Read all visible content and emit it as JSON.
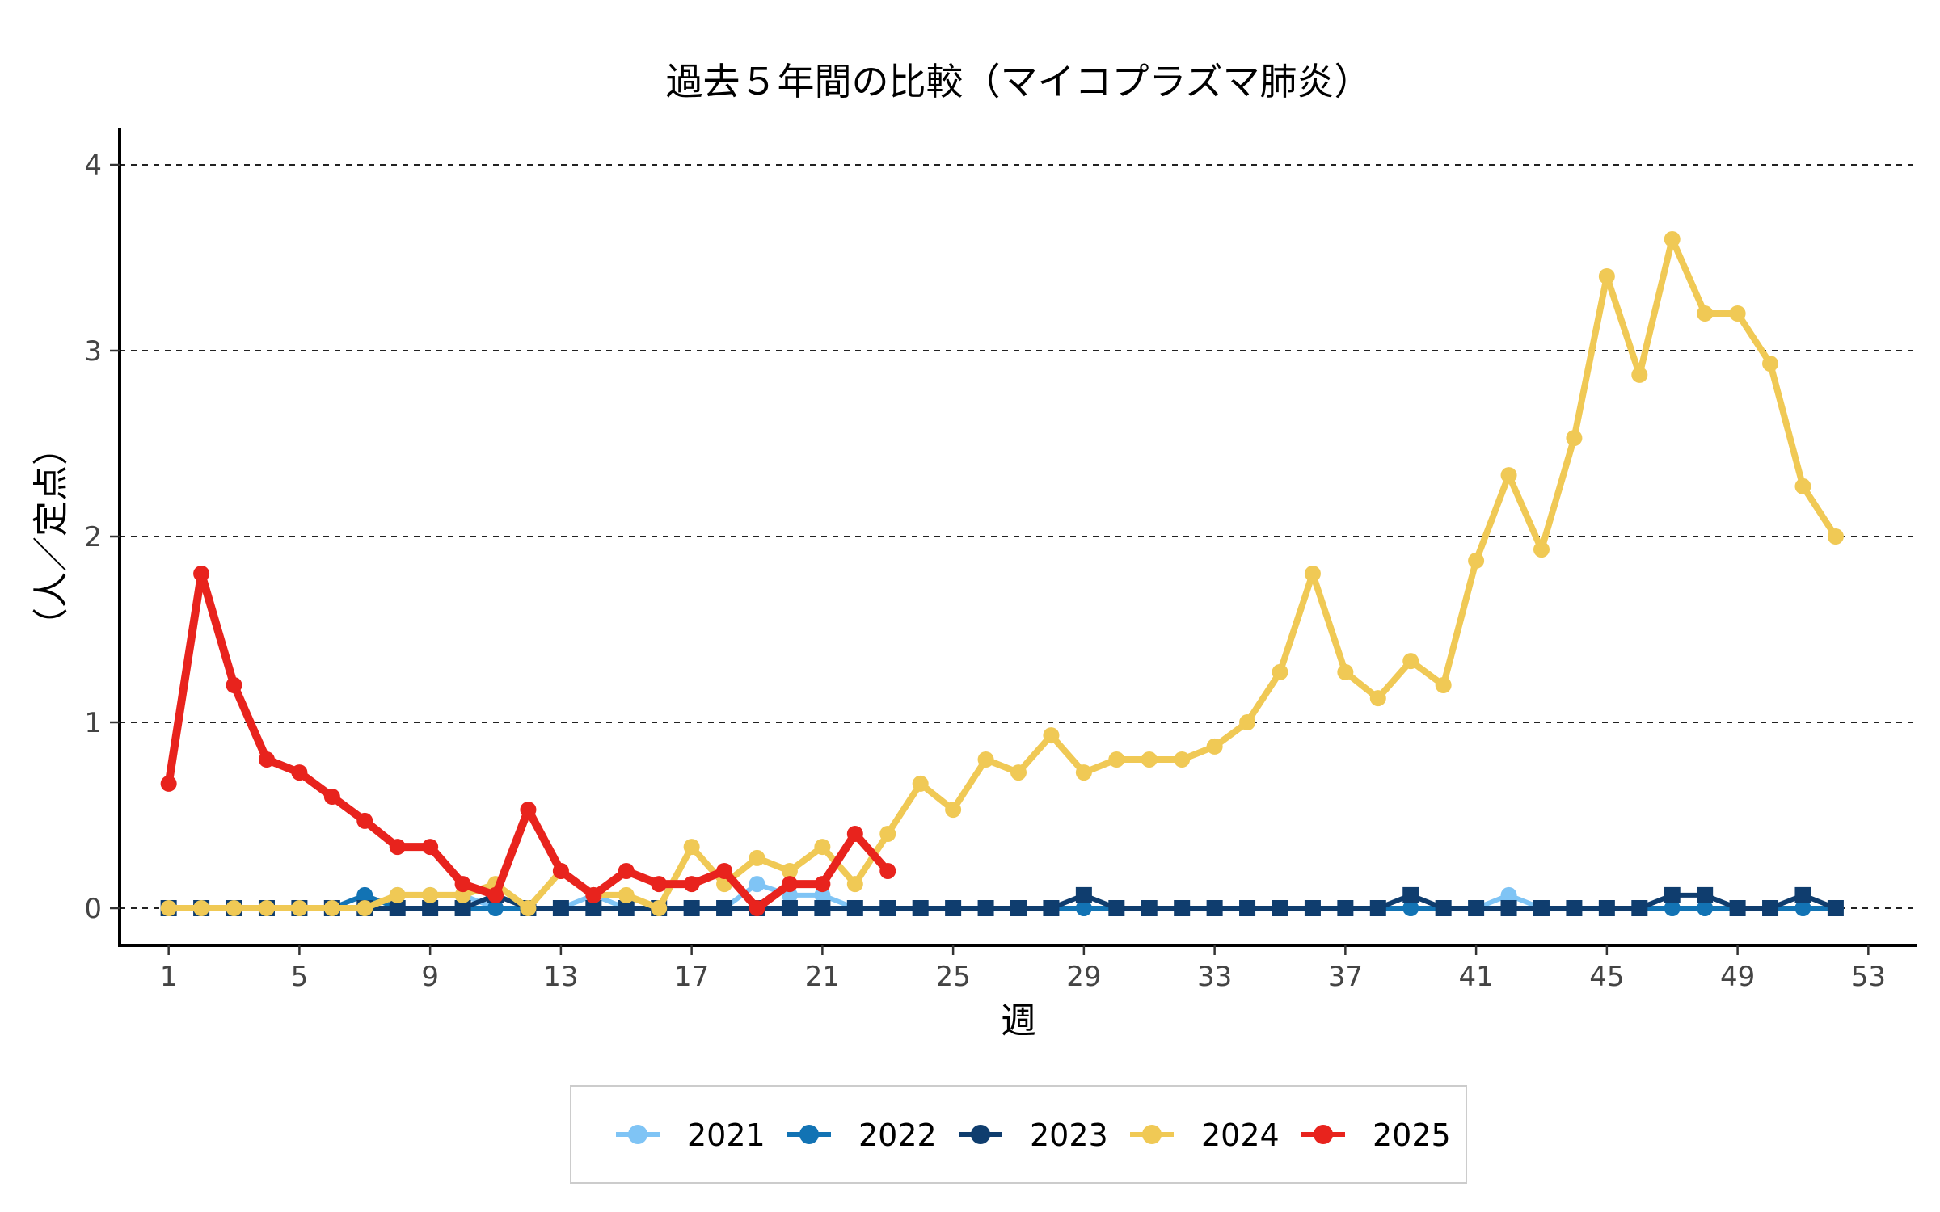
{
  "chart_data": {
    "type": "line",
    "title": "過去５年間の比較（マイコプラズマ肺炎）",
    "xlabel": "週",
    "ylabel": "（人／定点）",
    "xlim": [
      -0.5,
      54.5
    ],
    "ylim": [
      -0.2,
      4.2
    ],
    "x_ticks": [
      1,
      5,
      9,
      13,
      17,
      21,
      25,
      29,
      33,
      37,
      41,
      45,
      49,
      53
    ],
    "y_ticks": [
      0,
      1,
      2,
      3,
      4
    ],
    "grid": "horizontal dashed",
    "legend_position": "bottom",
    "series": [
      {
        "name": "2021",
        "color": "#7fc4f5",
        "marker": "circle",
        "x": [
          1,
          2,
          3,
          4,
          5,
          6,
          7,
          8,
          9,
          10,
          11,
          12,
          13,
          14,
          15,
          16,
          17,
          18,
          19,
          20,
          21,
          22,
          23,
          24,
          25,
          26,
          27,
          28,
          29,
          30,
          31,
          32,
          33,
          34,
          35,
          36,
          37,
          38,
          39,
          40,
          41,
          42,
          43,
          44,
          45,
          46,
          47,
          48,
          49,
          50,
          51,
          52
        ],
        "values": [
          0,
          0,
          0,
          0,
          0,
          0,
          0,
          0.07,
          0.07,
          0.07,
          0,
          0,
          0,
          0.07,
          0,
          0,
          0,
          0,
          0.13,
          0.07,
          0.07,
          0,
          0,
          0,
          0,
          0,
          0,
          0,
          0,
          0,
          0,
          0,
          0,
          0,
          0,
          0,
          0,
          0,
          0,
          0,
          0,
          0.07,
          0,
          0,
          0,
          0,
          0,
          0,
          0,
          0,
          0,
          0
        ]
      },
      {
        "name": "2022",
        "color": "#1273b4",
        "marker": "circle",
        "x": [
          1,
          2,
          3,
          4,
          5,
          6,
          7,
          8,
          9,
          10,
          11,
          12,
          13,
          14,
          15,
          16,
          17,
          18,
          19,
          20,
          21,
          22,
          23,
          24,
          25,
          26,
          27,
          28,
          29,
          30,
          31,
          32,
          33,
          34,
          35,
          36,
          37,
          38,
          39,
          40,
          41,
          42,
          43,
          44,
          45,
          46,
          47,
          48,
          49,
          50,
          51,
          52
        ],
        "values": [
          0,
          0,
          0,
          0,
          0,
          0,
          0.07,
          0,
          0,
          0,
          0,
          0,
          0,
          0,
          0,
          0,
          0,
          0,
          0,
          0,
          0,
          0,
          0,
          0,
          0,
          0,
          0,
          0,
          0,
          0,
          0,
          0,
          0,
          0,
          0,
          0,
          0,
          0,
          0,
          0,
          0,
          0,
          0,
          0,
          0,
          0,
          0,
          0,
          0,
          0,
          0,
          0
        ]
      },
      {
        "name": "2023",
        "color": "#0f3d6e",
        "marker": "square",
        "x": [
          1,
          2,
          3,
          4,
          5,
          6,
          7,
          8,
          9,
          10,
          11,
          12,
          13,
          14,
          15,
          16,
          17,
          18,
          19,
          20,
          21,
          22,
          23,
          24,
          25,
          26,
          27,
          28,
          29,
          30,
          31,
          32,
          33,
          34,
          35,
          36,
          37,
          38,
          39,
          40,
          41,
          42,
          43,
          44,
          45,
          46,
          47,
          48,
          49,
          50,
          51,
          52
        ],
        "values": [
          0,
          0,
          0,
          0,
          0,
          0,
          0,
          0,
          0,
          0,
          0.07,
          0,
          0,
          0,
          0,
          0,
          0,
          0,
          0,
          0,
          0,
          0,
          0,
          0,
          0,
          0,
          0,
          0,
          0.07,
          0,
          0,
          0,
          0,
          0,
          0,
          0,
          0,
          0,
          0.07,
          0,
          0,
          0,
          0,
          0,
          0,
          0,
          0.07,
          0.07,
          0,
          0,
          0.07,
          0
        ]
      },
      {
        "name": "2024",
        "color": "#f0c955",
        "marker": "circle",
        "x": [
          1,
          2,
          3,
          4,
          5,
          6,
          7,
          8,
          9,
          10,
          11,
          12,
          13,
          14,
          15,
          16,
          17,
          18,
          19,
          20,
          21,
          22,
          23,
          24,
          25,
          26,
          27,
          28,
          29,
          30,
          31,
          32,
          33,
          34,
          35,
          36,
          37,
          38,
          39,
          40,
          41,
          42,
          43,
          44,
          45,
          46,
          47,
          48,
          49,
          50,
          51,
          52
        ],
        "values": [
          0,
          0,
          0,
          0,
          0,
          0,
          0,
          0.07,
          0.07,
          0.07,
          0.13,
          0,
          0.2,
          0.07,
          0.07,
          0,
          0.33,
          0.13,
          0.27,
          0.2,
          0.33,
          0.13,
          0.4,
          0.67,
          0.53,
          0.8,
          0.73,
          0.93,
          0.73,
          0.8,
          0.8,
          0.8,
          0.87,
          1.0,
          1.27,
          1.8,
          1.27,
          1.13,
          1.33,
          1.2,
          1.87,
          2.33,
          1.93,
          2.53,
          3.4,
          2.87,
          3.6,
          3.2,
          3.2,
          2.93,
          2.27,
          2.0
        ]
      },
      {
        "name": "2025",
        "color": "#e8231d",
        "marker": "circle",
        "x": [
          1,
          2,
          3,
          4,
          5,
          6,
          7,
          8,
          9,
          10,
          11,
          12,
          13,
          14,
          15,
          16,
          17,
          18,
          19,
          20,
          21,
          22,
          23
        ],
        "values": [
          0.67,
          1.8,
          1.2,
          0.8,
          0.73,
          0.6,
          0.47,
          0.33,
          0.33,
          0.13,
          0.07,
          0.53,
          0.2,
          0.07,
          0.2,
          0.13,
          0.13,
          0.2,
          0,
          0.13,
          0.13,
          0.4,
          0.2
        ]
      }
    ]
  }
}
